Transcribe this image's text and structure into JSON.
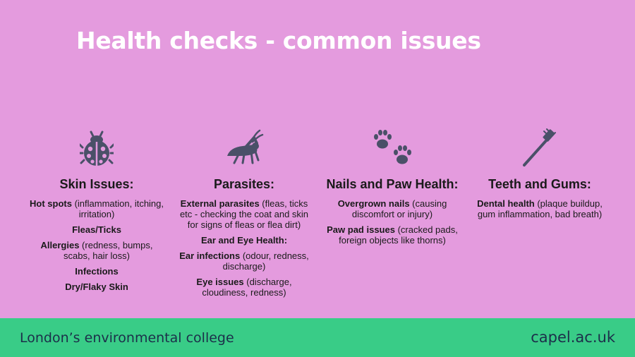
{
  "title": "Health checks - common issues",
  "columns": [
    {
      "icon": "ladybug-icon",
      "heading": "Skin Issues:",
      "items": [
        {
          "bold": "Hot spots",
          "text": " (inflammation, itching, irritation)"
        },
        {
          "bold": "Fleas/Ticks",
          "text": ""
        },
        {
          "bold": "Allergies",
          "text": " (redness, bumps, scabs, hair loss)"
        },
        {
          "bold": "Infections",
          "text": ""
        },
        {
          "bold": "Dry/Flaky Skin",
          "text": ""
        }
      ]
    },
    {
      "icon": "grasshopper-icon",
      "heading": "Parasites:",
      "items": [
        {
          "bold": "External parasites",
          "text": " (fleas, ticks etc - checking the coat and skin for signs of fleas or flea dirt)"
        },
        {
          "bold": "Ear and Eye Health:",
          "text": ""
        },
        {
          "bold": "Ear infections",
          "text": " (odour, redness, discharge)"
        },
        {
          "bold": "Eye issues",
          "text": " (discharge, cloudiness, redness)"
        }
      ]
    },
    {
      "icon": "paw-prints-icon",
      "heading": "Nails and Paw Health:",
      "items": [
        {
          "bold": "Overgrown nails",
          "text": " (causing discomfort or injury)"
        },
        {
          "bold": "Paw pad issues",
          "text": " (cracked pads, foreign objects like thorns)"
        }
      ]
    },
    {
      "icon": "toothbrush-icon",
      "heading": "Teeth and Gums:",
      "items": [
        {
          "bold": "Dental health",
          "text": " (plaque buildup, gum inflammation, bad breath)"
        }
      ]
    }
  ],
  "footer": {
    "left": "London’s environmental college",
    "right": "capel.ac.uk"
  },
  "colors": {
    "background": "#e49bde",
    "icon": "#4a5068",
    "footer": "#39cc87",
    "footer_text": "#1c2f4a"
  }
}
